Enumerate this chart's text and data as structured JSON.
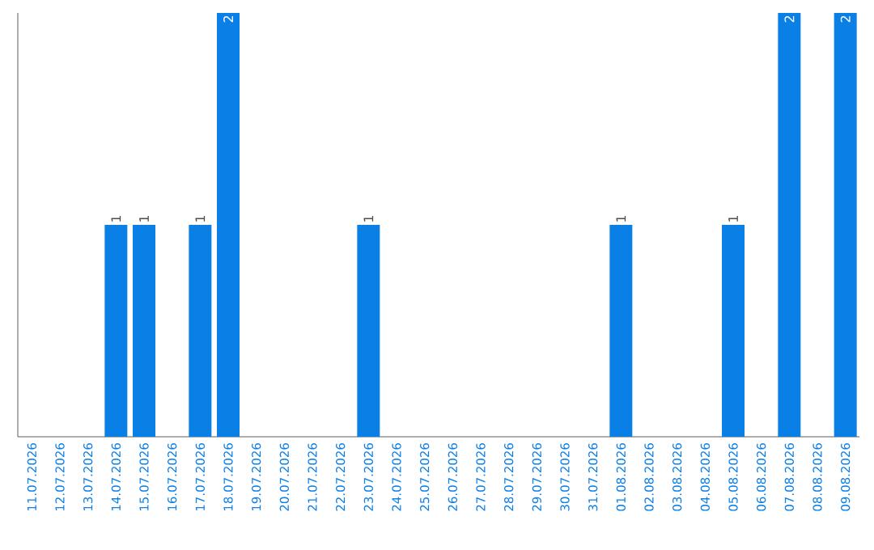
{
  "chart_data": {
    "type": "bar",
    "color": "#0a7fe6",
    "categories": [
      "11.07.2026",
      "12.07.2026",
      "13.07.2026",
      "14.07.2026",
      "15.07.2026",
      "16.07.2026",
      "17.07.2026",
      "18.07.2026",
      "19.07.2026",
      "20.07.2026",
      "21.07.2026",
      "22.07.2026",
      "23.07.2026",
      "24.07.2026",
      "25.07.2026",
      "26.07.2026",
      "27.07.2026",
      "28.07.2026",
      "29.07.2026",
      "30.07.2026",
      "31.07.2026",
      "01.08.2026",
      "02.08.2026",
      "03.08.2026",
      "04.08.2026",
      "05.08.2026",
      "06.08.2026",
      "07.08.2026",
      "08.08.2026",
      "09.08.2026"
    ],
    "values": [
      0,
      0,
      0,
      1,
      1,
      0,
      1,
      2,
      0,
      0,
      0,
      0,
      1,
      0,
      0,
      0,
      0,
      0,
      0,
      0,
      0,
      1,
      0,
      0,
      0,
      1,
      0,
      2,
      0,
      2
    ],
    "value_labels": [
      null,
      null,
      null,
      "1",
      "1",
      null,
      "1",
      "2",
      null,
      null,
      null,
      null,
      "1",
      null,
      null,
      null,
      null,
      null,
      null,
      null,
      null,
      "1",
      null,
      null,
      null,
      "1",
      null,
      "2",
      null,
      "2"
    ]
  }
}
